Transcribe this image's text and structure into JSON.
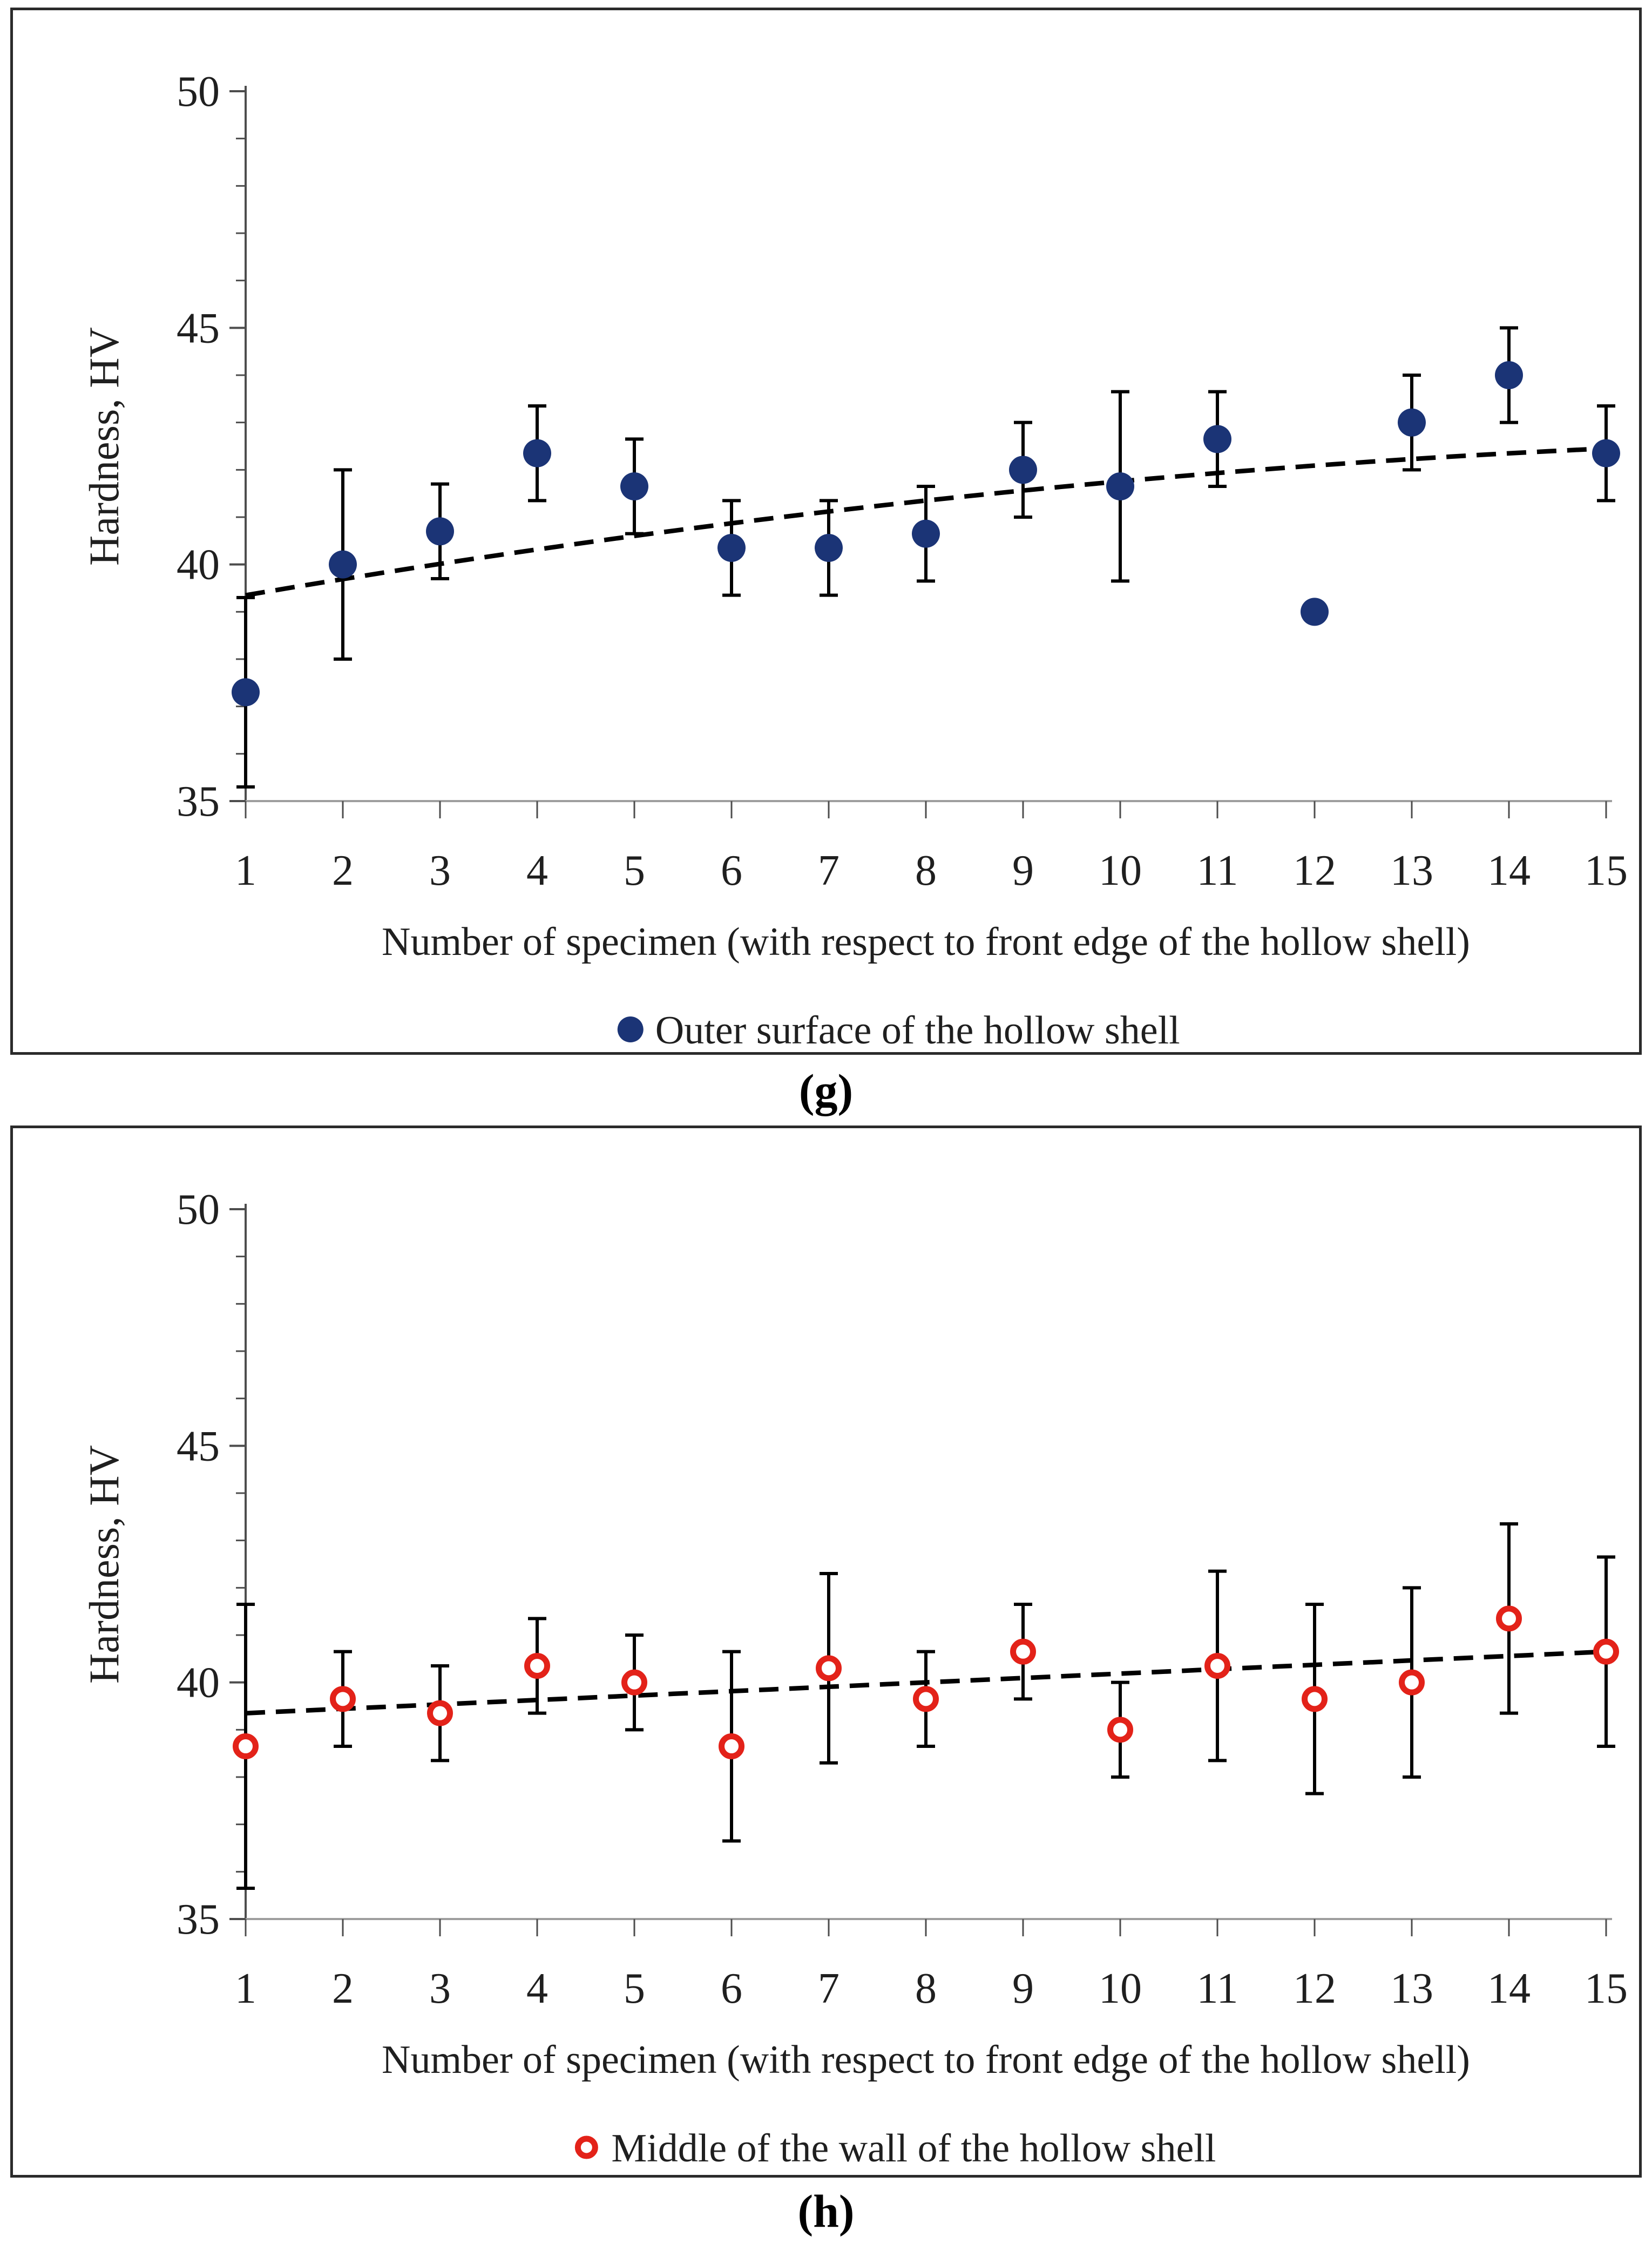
{
  "page": {
    "background": "#ffffff"
  },
  "captions": {
    "g": "(g)",
    "h": "(h)"
  },
  "chart_data": [
    {
      "id": "g",
      "type": "scatter",
      "marker": "filled-circle",
      "marker_color": "#1b3476",
      "xlabel": "Number of specimen (with respect to front edge of the hollow shell)",
      "ylabel": "Hardness, HV",
      "legend": {
        "label": "Outer surface of the hollow shell",
        "position": "bottom"
      },
      "caption": "(g)",
      "x": [
        1,
        2,
        3,
        4,
        5,
        6,
        7,
        8,
        9,
        10,
        11,
        12,
        13,
        14,
        15
      ],
      "values": [
        37.3,
        40.0,
        40.7,
        42.35,
        41.65,
        40.35,
        40.35,
        40.65,
        42.0,
        41.65,
        42.65,
        39.0,
        43.0,
        44.0,
        42.35
      ],
      "errors": [
        2.0,
        2.0,
        1.0,
        1.0,
        1.0,
        1.0,
        1.0,
        1.0,
        1.0,
        2.0,
        1.0,
        null,
        1.0,
        1.0,
        1.0
      ],
      "trendline": {
        "style": "dashed",
        "color": "#000000",
        "coefficients": {
          "a": 38.99,
          "b": 0.3684,
          "c": -0.00918
        }
      },
      "xlim": [
        1,
        15
      ],
      "ylim": [
        35,
        50
      ],
      "xticks": [
        1,
        2,
        3,
        4,
        5,
        6,
        7,
        8,
        9,
        10,
        11,
        12,
        13,
        14,
        15
      ],
      "yticks_major": [
        35,
        40,
        45,
        50
      ],
      "ytick_minor_step": 1,
      "grid": false,
      "legend_position": "bottom"
    },
    {
      "id": "h",
      "type": "scatter",
      "marker": "open-circle",
      "marker_color": "#e32219",
      "xlabel": "Number of specimen (with respect to front edge of the hollow shell)",
      "ylabel": "Hardness, HV",
      "legend": {
        "label": "Middle of the wall of the hollow shell",
        "position": "bottom"
      },
      "caption": "(h)",
      "x": [
        1,
        2,
        3,
        4,
        5,
        6,
        7,
        8,
        9,
        10,
        11,
        12,
        13,
        14,
        15
      ],
      "values": [
        38.65,
        39.65,
        39.35,
        40.35,
        40.0,
        38.65,
        40.3,
        39.65,
        40.65,
        39.0,
        40.35,
        39.65,
        40.0,
        41.35,
        40.65
      ],
      "errors": [
        3.0,
        1.0,
        1.0,
        1.0,
        1.0,
        2.0,
        2.0,
        1.0,
        1.0,
        1.0,
        2.0,
        2.0,
        2.0,
        2.0,
        2.0
      ],
      "trendline": {
        "style": "dashed",
        "color": "#000000",
        "coefficients": {
          "a": 39.257,
          "b": 0.0929,
          "c": 0
        }
      },
      "xlim": [
        1,
        15
      ],
      "ylim": [
        35,
        50
      ],
      "xticks": [
        1,
        2,
        3,
        4,
        5,
        6,
        7,
        8,
        9,
        10,
        11,
        12,
        13,
        14,
        15
      ],
      "yticks_major": [
        35,
        40,
        45,
        50
      ],
      "ytick_minor_step": 1,
      "grid": false,
      "legend_position": "bottom"
    }
  ]
}
